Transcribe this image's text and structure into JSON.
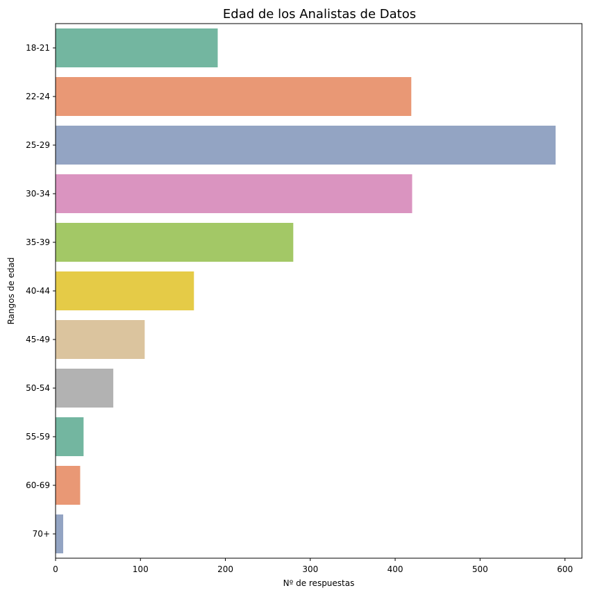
{
  "chart_data": {
    "type": "bar",
    "orientation": "horizontal",
    "title": "Edad de los Analistas de Datos",
    "xlabel": "Nº de respuestas",
    "ylabel": "Rangos de edad",
    "categories": [
      "18-21",
      "22-24",
      "25-29",
      "30-34",
      "35-39",
      "40-44",
      "45-49",
      "50-54",
      "55-59",
      "60-69",
      "70+"
    ],
    "values": [
      191,
      419,
      589,
      420,
      280,
      163,
      105,
      68,
      33,
      29,
      9
    ],
    "colors": [
      "#73b6a0",
      "#e99875",
      "#93a4c3",
      "#da94c0",
      "#a3c866",
      "#e5cb47",
      "#dbc49e",
      "#b2b2b2",
      "#73b6a0",
      "#e99875",
      "#93a4c3"
    ],
    "xlim": [
      0,
      620
    ],
    "xticks": [
      0,
      100,
      200,
      300,
      400,
      500,
      600
    ],
    "grid": false,
    "legend": "none"
  }
}
